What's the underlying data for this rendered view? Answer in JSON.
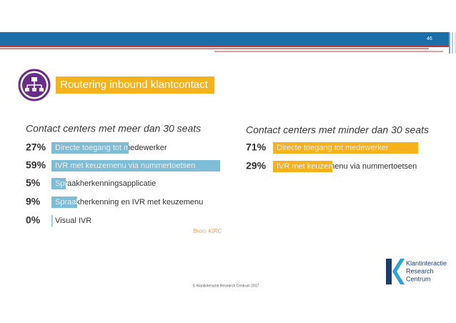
{
  "slide": {
    "page_number": "46",
    "heading": "Routering inbound klantcontact",
    "footer": "© Klantinteractie Research Centrum 2017",
    "logo_lines": [
      "Klantinteractie",
      "Research",
      "Centrum"
    ]
  },
  "chart_data": [
    {
      "type": "bar",
      "subtitle": "Contact centers met meer dan 30 seats",
      "color": "#7dbdd6",
      "categories": [
        "Directe toegang tot medewerker",
        "IVR met keuzemenu via nummertoetsen",
        "Spraakherkenningsapplicatie",
        "Spraakherkenning en IVR met keuzemenu",
        "Visual IVR"
      ],
      "values": [
        27,
        59,
        5,
        9,
        0
      ],
      "value_labels": [
        "27%",
        "59%",
        "5%",
        "9%",
        "0%"
      ],
      "source": "Bron: KIRC"
    },
    {
      "type": "bar",
      "subtitle": "Contact centers met minder dan 30 seats",
      "color": "#f6b21b",
      "categories": [
        "Directe toegang tot medewerker",
        "IVR met keuzemenu via nummertoetsen"
      ],
      "values": [
        71,
        29
      ],
      "value_labels": [
        "71%",
        "29%"
      ]
    }
  ]
}
